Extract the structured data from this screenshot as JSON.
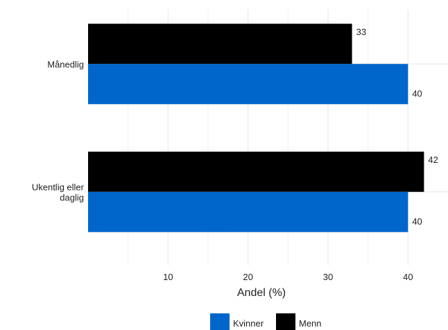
{
  "chart_data": {
    "type": "bar",
    "orientation": "horizontal",
    "categories": [
      "Månedlig",
      "Ukentlig eller daglig"
    ],
    "category_label_lines": [
      [
        "Månedlig"
      ],
      [
        "Ukentlig eller",
        "daglig"
      ]
    ],
    "series": [
      {
        "name": "Menn",
        "values": [
          33,
          42
        ],
        "color": "#000000"
      },
      {
        "name": "Kvinner",
        "values": [
          40,
          40
        ],
        "color": "#0066cc"
      }
    ],
    "xlabel": "Andel (%)",
    "ylabel": "",
    "xlim": [
      0,
      45
    ],
    "xticks": [
      10,
      20,
      30,
      40
    ],
    "grid": true,
    "legend": {
      "position": "bottom",
      "items": [
        {
          "name": "Kvinner",
          "color": "#0066cc"
        },
        {
          "name": "Menn",
          "color": "#000000"
        }
      ]
    }
  }
}
